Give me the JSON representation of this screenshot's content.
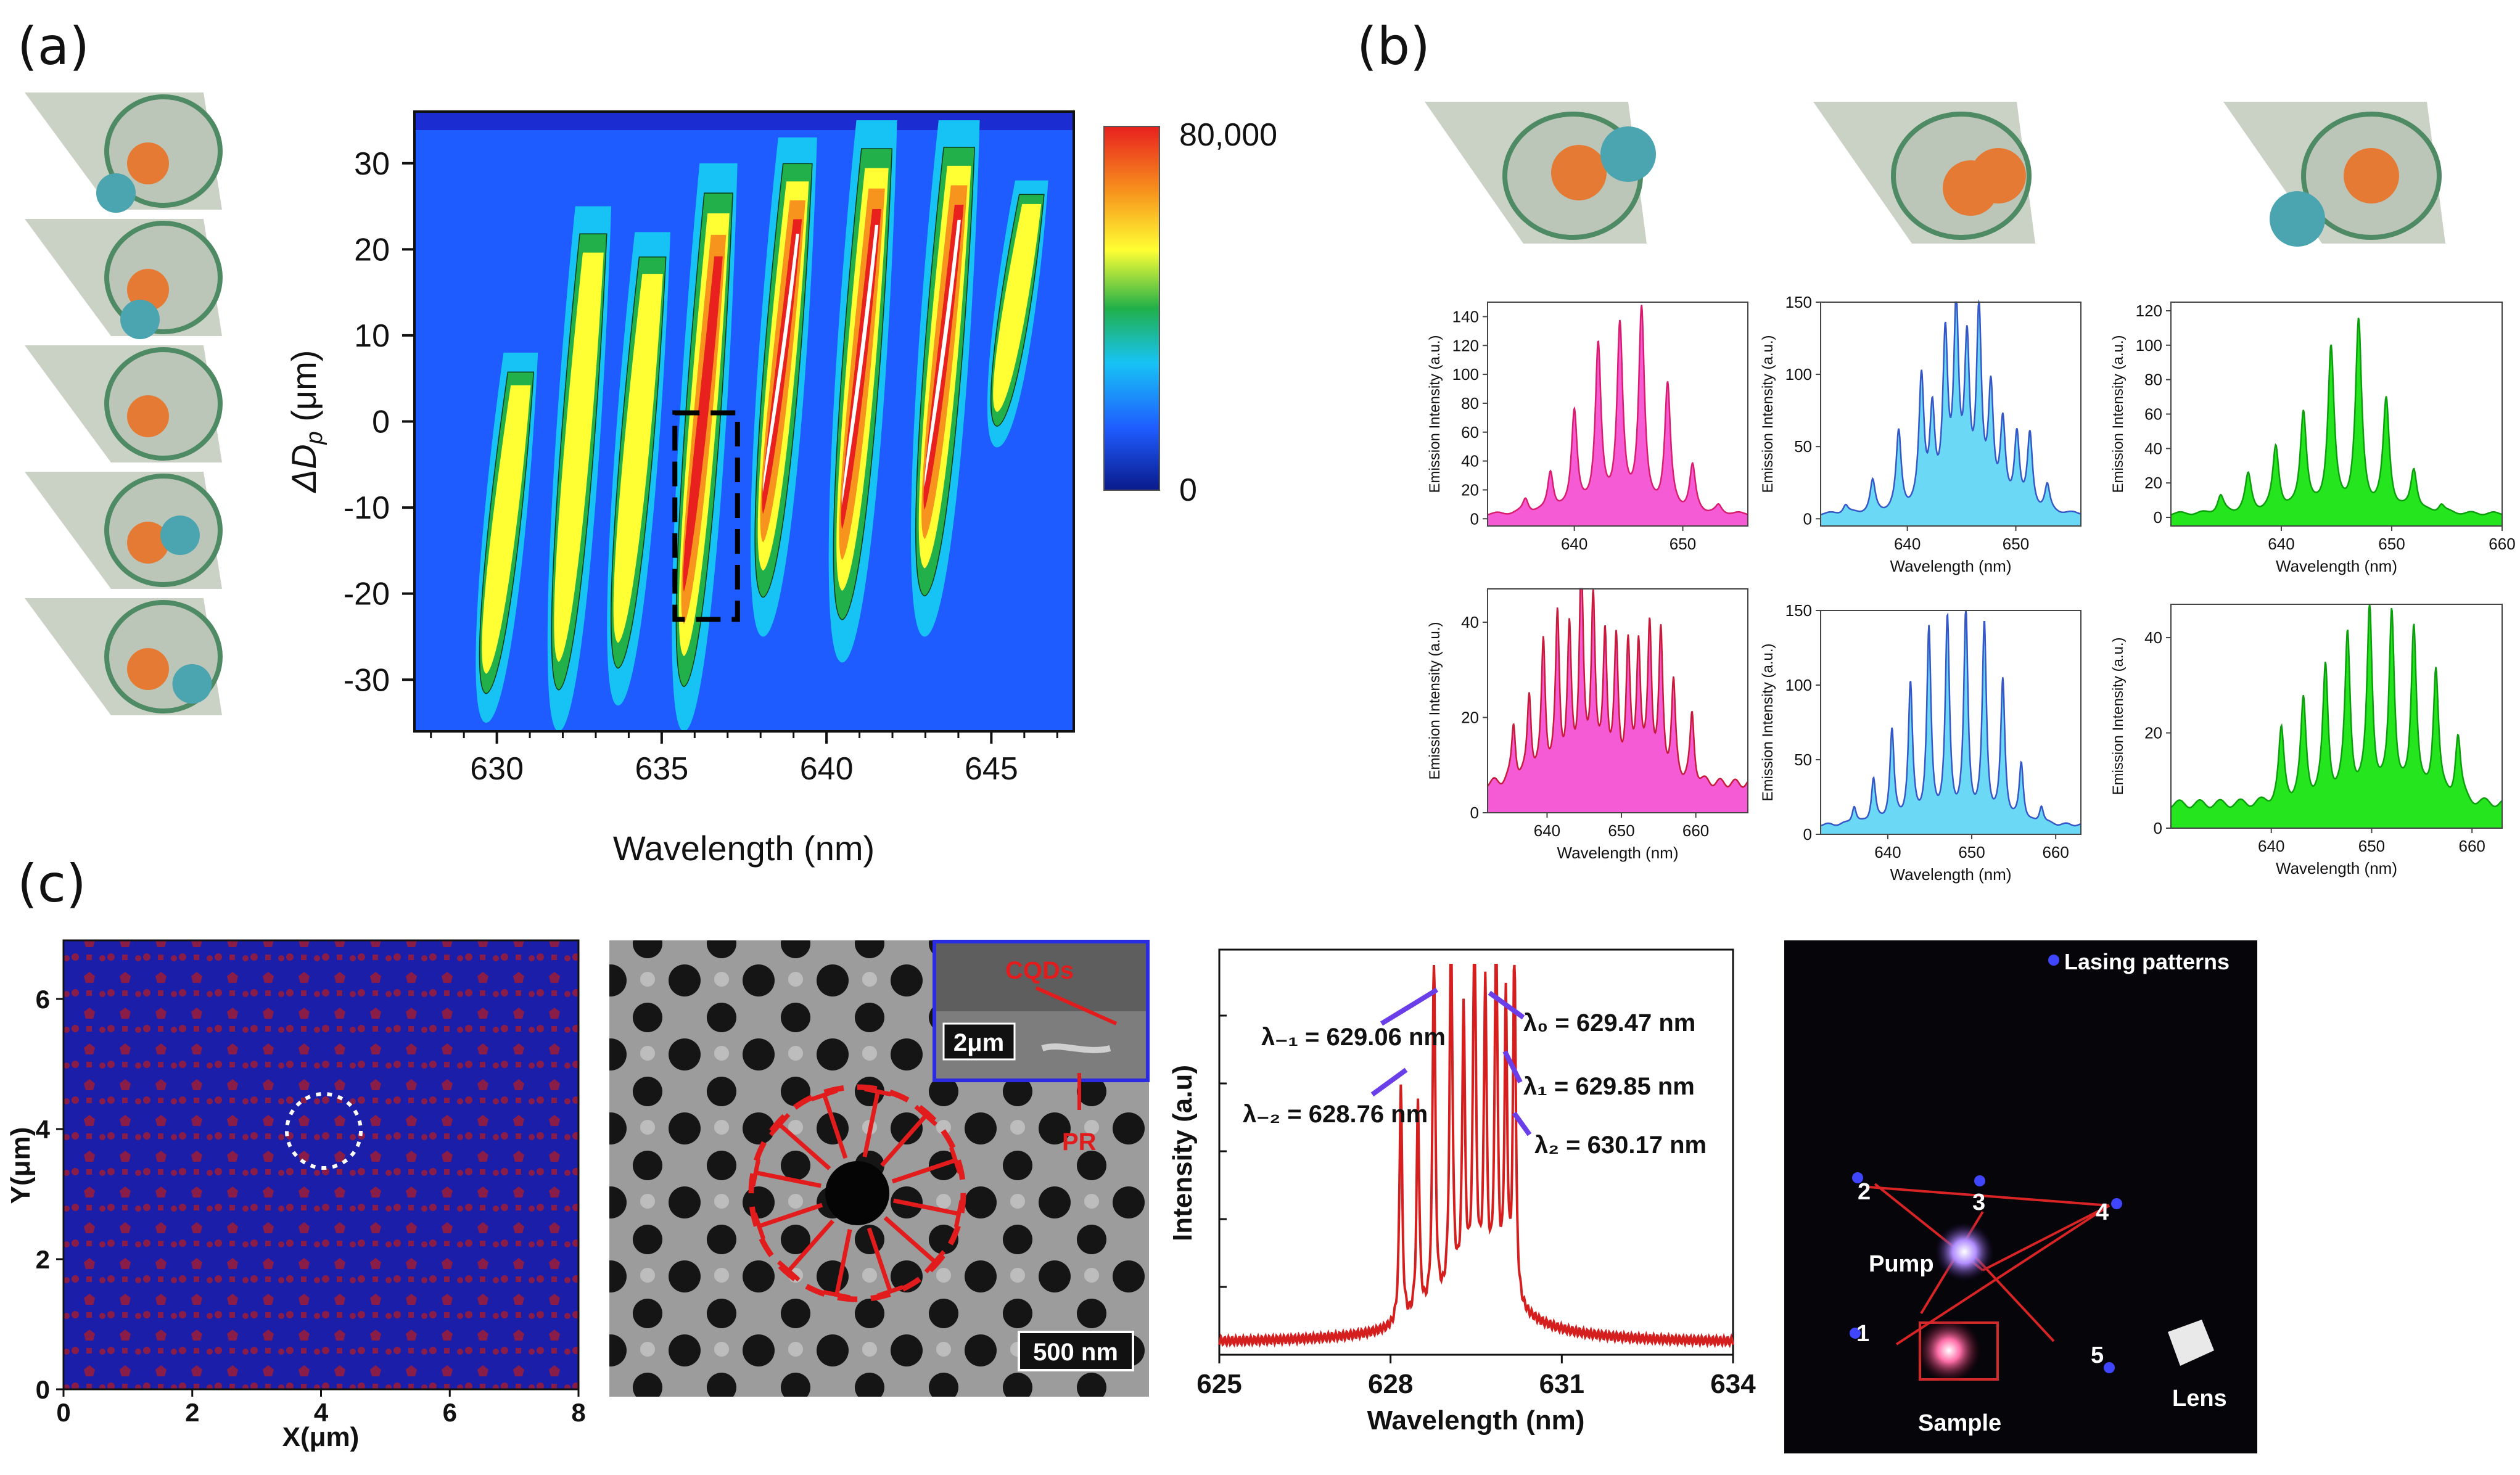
{
  "panels": {
    "a": "(a)",
    "b": "(b)",
    "c": "(c)"
  },
  "panel_a": {
    "colorbar": {
      "max_label": "80,000",
      "min_label": "0",
      "colors": [
        "#0a1a8a",
        "#1f5cff",
        "#17c3f5",
        "#21b04a",
        "#ffff33",
        "#f7941d",
        "#e8201e"
      ]
    },
    "xlabel": "Wavelength (nm)",
    "ylabel_prefix": "ΔD",
    "ylabel_sub": "p",
    "ylabel_suffix": " (μm)"
  },
  "panel_b": {
    "ylabel": "Emission Intensity (a.u.)",
    "xlabel": "Wavelength (nm)"
  },
  "panel_c": {
    "qc_xlabel": "X(μm)",
    "qc_ylabel": "Y(μm)",
    "sem_inset_label_cqds": "CQDs",
    "sem_inset_label_pr": "PR",
    "sem_inset_scale": "2μm",
    "sem_scale": "500 nm",
    "spec_ylabel": "Intensity (a.u)",
    "spec_xlabel": "Wavelength (nm)",
    "ann": {
      "lm1": "λ₋₁ = 629.06 nm",
      "lm2": "λ₋₂ = 628.76 nm",
      "l0": "λ₀ = 629.47 nm",
      "l1": "λ₁ = 629.85 nm",
      "l2": "λ₂ = 630.17 nm"
    },
    "photo": {
      "legend": "Lasing patterns",
      "pump": "Pump",
      "sample": "Sample",
      "lens": "Lens",
      "n1": "1",
      "n2": "2",
      "n3": "3",
      "n4": "4",
      "n5": "5"
    }
  },
  "chart_data": [
    {
      "id": "a-heatmap",
      "type": "heatmap",
      "xlabel": "Wavelength (nm)",
      "ylabel": "ΔDp (μm)",
      "xlim": [
        627.5,
        647.5
      ],
      "ylim": [
        -36,
        36
      ],
      "xticks": [
        630,
        635,
        640,
        645
      ],
      "yticks": [
        -30,
        -20,
        -10,
        0,
        10,
        20,
        30
      ],
      "colorbar_range": [
        0,
        80000
      ],
      "modes": [
        {
          "center": 630.2,
          "y": [
            -35,
            8
          ],
          "peak": 0.62
        },
        {
          "center": 632.4,
          "y": [
            -36,
            25
          ],
          "peak": 0.7
        },
        {
          "center": 634.2,
          "y": [
            -33,
            22
          ],
          "peak": 0.68
        },
        {
          "center": 636.2,
          "y": [
            -36,
            30
          ],
          "peak": 0.8
        },
        {
          "center": 638.6,
          "y": [
            -25,
            33
          ],
          "peak": 0.85
        },
        {
          "center": 641.0,
          "y": [
            -28,
            35
          ],
          "peak": 0.95
        },
        {
          "center": 643.5,
          "y": [
            -25,
            35
          ],
          "peak": 0.97
        },
        {
          "center": 645.7,
          "y": [
            -3,
            28
          ],
          "peak": 0.55
        }
      ],
      "highlight_box": {
        "x": [
          635.4,
          637.3
        ],
        "y": [
          -23,
          1
        ]
      }
    },
    {
      "id": "b-top-1",
      "type": "area",
      "color": "#f65bd6",
      "line": "#d81d6e",
      "xlim": [
        632,
        656
      ],
      "ylim": [
        -5,
        150
      ],
      "xticks": [
        640,
        650
      ],
      "yticks": [
        0,
        20,
        40,
        60,
        80,
        100,
        120,
        140
      ],
      "peaks": [
        [
          635.5,
          10
        ],
        [
          637.8,
          28
        ],
        [
          640.0,
          70
        ],
        [
          642.2,
          115
        ],
        [
          644.2,
          128
        ],
        [
          646.2,
          140
        ],
        [
          648.6,
          88
        ],
        [
          650.9,
          32
        ],
        [
          653.3,
          5
        ]
      ],
      "baseline": 3,
      "width": 0.32
    },
    {
      "id": "b-top-2",
      "type": "area",
      "color": "#6bd8f5",
      "line": "#3557c7",
      "xlim": [
        632,
        656
      ],
      "ylim": [
        -5,
        150
      ],
      "xticks": [
        640,
        650
      ],
      "yticks": [
        0,
        50,
        100,
        150
      ],
      "xlabel": "Wavelength (nm)",
      "peaks": [
        [
          634.3,
          6
        ],
        [
          636.8,
          22
        ],
        [
          639.2,
          55
        ],
        [
          641.3,
          90
        ],
        [
          642.3,
          65
        ],
        [
          643.5,
          115
        ],
        [
          644.5,
          133
        ],
        [
          645.5,
          108
        ],
        [
          646.6,
          132
        ],
        [
          647.7,
          80
        ],
        [
          648.8,
          58
        ],
        [
          650.1,
          52
        ],
        [
          651.3,
          52
        ],
        [
          652.9,
          18
        ]
      ],
      "baseline": 3,
      "width": 0.28
    },
    {
      "id": "b-top-3",
      "type": "area",
      "color": "#25e61e",
      "line": "#0d9e0d",
      "xlim": [
        630,
        660
      ],
      "ylim": [
        -5,
        125
      ],
      "xticks": [
        640,
        650,
        660
      ],
      "yticks": [
        0,
        20,
        40,
        60,
        80,
        100,
        120
      ],
      "xlabel": "Wavelength (nm)",
      "peaks": [
        [
          634.5,
          10
        ],
        [
          637.0,
          22
        ],
        [
          639.5,
          38
        ],
        [
          642.0,
          58
        ],
        [
          644.5,
          95
        ],
        [
          647.0,
          110
        ],
        [
          649.5,
          65
        ],
        [
          652.0,
          25
        ],
        [
          654.5,
          5
        ]
      ],
      "baseline": 2,
      "width": 0.34
    },
    {
      "id": "b-bot-1",
      "type": "area",
      "color": "#f65bd6",
      "line": "#c81a3a",
      "xlim": [
        632,
        667
      ],
      "ylim": [
        0,
        47
      ],
      "xticks": [
        640,
        650,
        660
      ],
      "yticks": [
        0,
        20,
        40
      ],
      "xlabel": "Wavelength (nm)",
      "peaks": [
        [
          635.5,
          12
        ],
        [
          637.6,
          18
        ],
        [
          639.5,
          29
        ],
        [
          641.4,
          34
        ],
        [
          643.0,
          30
        ],
        [
          644.6,
          45
        ],
        [
          646.2,
          38
        ],
        [
          647.8,
          30
        ],
        [
          649.3,
          28
        ],
        [
          650.9,
          27
        ],
        [
          652.3,
          28
        ],
        [
          653.8,
          32
        ],
        [
          655.3,
          30
        ],
        [
          657.0,
          20
        ],
        [
          659.5,
          14
        ]
      ],
      "baseline": 6,
      "width": 0.32
    },
    {
      "id": "b-bot-2",
      "type": "area",
      "color": "#6bd8f5",
      "line": "#3557c7",
      "xlim": [
        632,
        663
      ],
      "ylim": [
        0,
        150
      ],
      "xticks": [
        640,
        650,
        660
      ],
      "yticks": [
        0,
        50,
        100,
        150
      ],
      "xlabel": "Wavelength (nm)",
      "peaks": [
        [
          636.0,
          12
        ],
        [
          638.3,
          30
        ],
        [
          640.5,
          62
        ],
        [
          642.7,
          92
        ],
        [
          644.9,
          128
        ],
        [
          647.1,
          135
        ],
        [
          649.3,
          140
        ],
        [
          651.5,
          132
        ],
        [
          653.7,
          95
        ],
        [
          655.9,
          40
        ],
        [
          658.3,
          12
        ]
      ],
      "baseline": 6,
      "width": 0.3
    },
    {
      "id": "b-bot-3",
      "type": "area",
      "color": "#25e61e",
      "line": "#0d9e0d",
      "xlim": [
        630,
        663
      ],
      "ylim": [
        0,
        47
      ],
      "xticks": [
        640,
        650,
        660
      ],
      "yticks": [
        0,
        20,
        40
      ],
      "xlabel": "Wavelength (nm)",
      "peaks": [
        [
          641.0,
          15
        ],
        [
          643.2,
          21
        ],
        [
          645.4,
          28
        ],
        [
          647.6,
          35
        ],
        [
          649.8,
          41
        ],
        [
          652.0,
          40
        ],
        [
          654.2,
          37
        ],
        [
          656.4,
          28
        ],
        [
          658.6,
          14
        ]
      ],
      "baseline": 5,
      "width": 0.32
    },
    {
      "id": "c-spectrum",
      "type": "line",
      "color": "#d51f1f",
      "xlabel": "Wavelength (nm)",
      "ylabel": "Intensity (a.u)",
      "xlim": [
        625,
        634
      ],
      "xticks": [
        625,
        628,
        631,
        634
      ],
      "peaks": [
        [
          628.18,
          0.62
        ],
        [
          628.48,
          0.55
        ],
        [
          628.76,
          0.93
        ],
        [
          629.06,
          1.0
        ],
        [
          629.28,
          0.72
        ],
        [
          629.47,
          1.0
        ],
        [
          629.66,
          0.78
        ],
        [
          629.85,
          0.97
        ],
        [
          630.02,
          0.75
        ],
        [
          630.17,
          0.93
        ]
      ],
      "envelope_center": 629.5
    }
  ]
}
